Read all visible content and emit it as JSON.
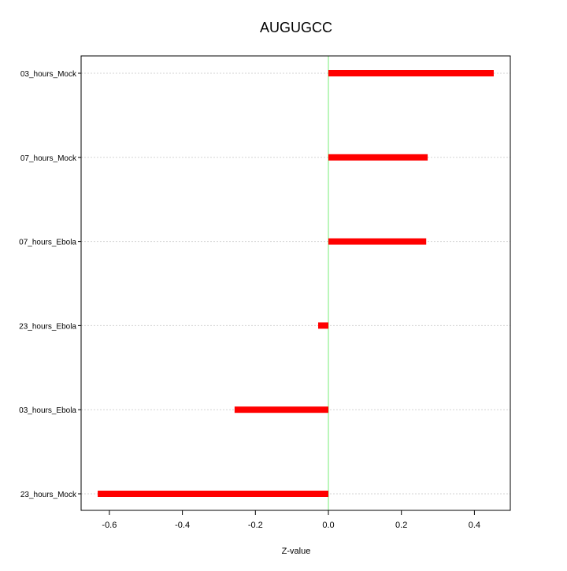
{
  "chart_data": {
    "type": "bar",
    "orientation": "horizontal",
    "title": "AUGUGCC",
    "xlabel": "Z-value",
    "ylabel": "",
    "categories": [
      "03_hours_Mock",
      "07_hours_Mock",
      "07_hours_Ebola",
      "23_hours_Ebola",
      "03_hours_Ebola",
      "23_hours_Mock"
    ],
    "values": [
      0.453,
      0.272,
      0.268,
      -0.028,
      -0.257,
      -0.632
    ],
    "xlim": [
      -0.68,
      0.5
    ],
    "xticks": [
      -0.6,
      -0.4,
      -0.2,
      0.0,
      0.2,
      0.4
    ],
    "xtick_labels": [
      "-0.6",
      "-0.4",
      "-0.2",
      "0.0",
      "0.2",
      "0.4"
    ],
    "grid": "horizontal dotted",
    "colors": {
      "bar": "#ff0000",
      "zero_line": "#77ee77",
      "grid": "#d3d3d3"
    }
  }
}
